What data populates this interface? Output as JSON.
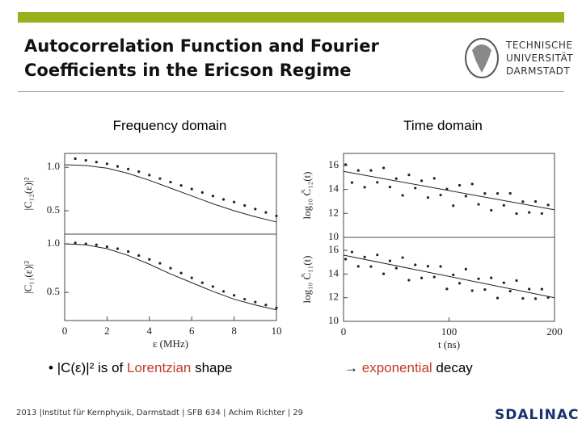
{
  "header": {
    "title_lines": [
      "Autocorrelation Function and Fourier",
      "Coefficients in the Ericson Regime"
    ],
    "logo_lines": [
      "TECHNISCHE",
      "UNIVERSITÄT",
      "DARMSTADT"
    ]
  },
  "columns": [
    "Frequency domain",
    "Time domain"
  ],
  "chart_data": [
    {
      "type": "line",
      "ylabel": "|C₁₂(ε)|²",
      "xlim": [
        0,
        10
      ],
      "ylim": [
        0.23,
        1.16
      ],
      "yticks": [
        0.5,
        {
          "value": 1,
          "label": "1.0"
        }
      ],
      "color": "#222",
      "series": [
        {
          "mode": "markers",
          "x": [
            0.5,
            1,
            1.5,
            2,
            2.5,
            3,
            3.5,
            4,
            4.5,
            5,
            5.5,
            6,
            6.5,
            7,
            7.5,
            8,
            8.5,
            9,
            9.5,
            10
          ],
          "values": [
            1.1,
            1.08,
            1.06,
            1.04,
            1.01,
            0.98,
            0.95,
            0.91,
            0.87,
            0.83,
            0.79,
            0.75,
            0.71,
            0.67,
            0.63,
            0.6,
            0.56,
            0.52,
            0.48,
            0.44
          ]
        },
        {
          "mode": "line",
          "x": [
            0,
            1,
            2,
            3,
            4,
            5,
            6,
            7,
            8,
            9,
            10
          ],
          "values": [
            1.03,
            1.02,
            0.99,
            0.93,
            0.85,
            0.76,
            0.67,
            0.58,
            0.5,
            0.43,
            0.37
          ]
        }
      ]
    },
    {
      "type": "line",
      "ylabel": "|C₁₁(ε)|²",
      "xlabel": "ε (MHz)",
      "xlim": [
        0,
        10
      ],
      "ylim": [
        0.21,
        1.1
      ],
      "xticks": [
        0,
        2,
        4,
        6,
        8,
        10
      ],
      "yticks": [
        0.5,
        {
          "value": 1,
          "label": "1.0"
        }
      ],
      "color": "#222",
      "series": [
        {
          "mode": "markers",
          "x": [
            0.5,
            1,
            1.5,
            2,
            2.5,
            3,
            3.5,
            4,
            4.5,
            5,
            5.5,
            6,
            6.5,
            7,
            7.5,
            8,
            8.5,
            9,
            9.5,
            10
          ],
          "values": [
            1.01,
            1.0,
            0.99,
            0.97,
            0.95,
            0.92,
            0.88,
            0.84,
            0.8,
            0.75,
            0.7,
            0.65,
            0.6,
            0.56,
            0.51,
            0.47,
            0.43,
            0.4,
            0.37,
            0.34
          ]
        },
        {
          "mode": "line",
          "x": [
            0,
            1,
            2,
            3,
            4,
            5,
            6,
            7,
            8,
            9,
            10
          ],
          "values": [
            1.0,
            0.99,
            0.95,
            0.88,
            0.79,
            0.69,
            0.6,
            0.51,
            0.43,
            0.37,
            0.32
          ]
        }
      ]
    },
    {
      "type": "scatter",
      "ylabel": "log₁₀ C̃₁₂(t)",
      "xlim": [
        0,
        200
      ],
      "ylim": [
        10,
        17
      ],
      "yticks": [
        10,
        12,
        14,
        16
      ],
      "color": "#222",
      "series": [
        {
          "mode": "markers",
          "x": [
            2,
            8,
            14,
            20,
            26,
            32,
            38,
            44,
            50,
            56,
            62,
            68,
            74,
            80,
            86,
            92,
            98,
            104,
            110,
            116,
            122,
            128,
            134,
            140,
            146,
            152,
            158,
            164,
            170,
            176,
            182,
            188,
            194
          ],
          "values": [
            16.07,
            14.57,
            15.58,
            14.18,
            15.58,
            14.59,
            15.79,
            14.2,
            14.9,
            13.5,
            15.21,
            14.11,
            14.72,
            13.32,
            14.92,
            13.53,
            14.03,
            12.64,
            14.34,
            13.44,
            14.45,
            12.75,
            13.66,
            12.26,
            13.66,
            12.67,
            13.67,
            11.98,
            12.98,
            12.08,
            12.99,
            11.99,
            12.7
          ]
        },
        {
          "mode": "line",
          "x": [
            0,
            200
          ],
          "values": [
            15.5,
            12.3
          ]
        }
      ]
    },
    {
      "type": "scatter",
      "ylabel": "log₁₀ C̃₁₁(t)",
      "xlabel": "t (ns)",
      "xlim": [
        0,
        200
      ],
      "ylim": [
        10,
        17.1
      ],
      "xticks": [
        0,
        100,
        200
      ],
      "yticks": [
        10,
        12,
        14,
        16
      ],
      "color": "#222",
      "series": [
        {
          "mode": "markers",
          "x": [
            2,
            8,
            14,
            20,
            26,
            32,
            38,
            44,
            50,
            56,
            62,
            68,
            74,
            80,
            86,
            92,
            98,
            104,
            110,
            116,
            122,
            128,
            134,
            140,
            146,
            152,
            158,
            164,
            170,
            176,
            182,
            188,
            194
          ],
          "values": [
            15.26,
            15.86,
            14.65,
            15.44,
            14.63,
            15.62,
            14.02,
            15.11,
            14.5,
            15.39,
            13.48,
            14.78,
            13.67,
            14.66,
            13.75,
            14.64,
            12.74,
            13.93,
            13.22,
            14.41,
            12.6,
            13.6,
            12.69,
            13.68,
            11.97,
            13.26,
            12.56,
            13.45,
            11.94,
            12.73,
            11.92,
            12.72,
            12.01
          ]
        },
        {
          "mode": "line",
          "x": [
            0,
            200
          ],
          "values": [
            15.6,
            12.0
          ]
        }
      ]
    }
  ],
  "bullets": [
    {
      "prefix": "|C(ε)|² is of ",
      "highlight": "Lorentzian",
      "suffix": " shape"
    },
    {
      "prefix": "→ ",
      "highlight": "exponential",
      "suffix": " decay"
    }
  ],
  "footer": {
    "text": "2013 |Institut für Kernphysik, Darmstadt  |  SFB 634 | Achim Richter | 29",
    "logo": "SDALINAC"
  }
}
